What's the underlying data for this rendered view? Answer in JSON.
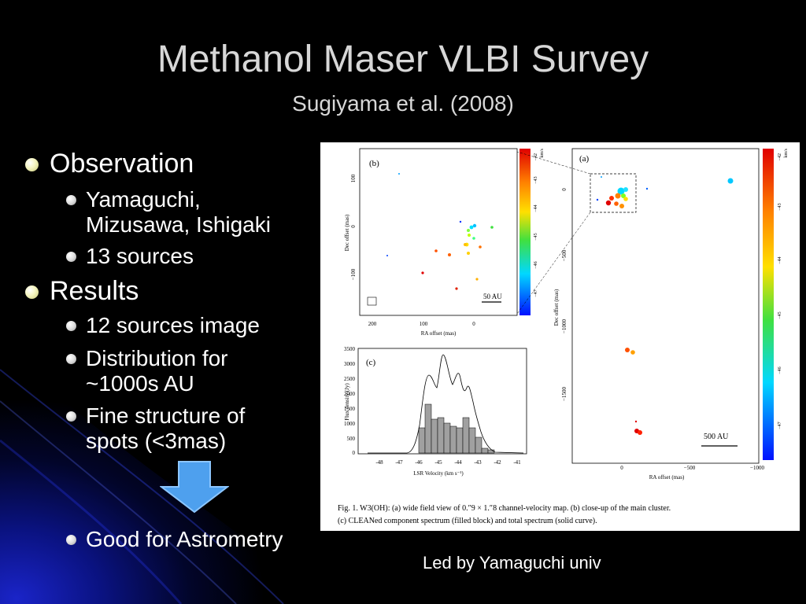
{
  "slide": {
    "title": "Methanol Maser VLBI Survey",
    "subtitle": "Sugiyama et al. (2008)",
    "credit": "Led by Yamaguchi univ",
    "bullets": [
      {
        "text": "Observation",
        "children": [
          "Yamaguchi,\nMizusawa, Ishigaki",
          "13 sources"
        ]
      },
      {
        "text": "Results",
        "children": [
          "12 sources image",
          "Distribution for\n~1000s AU",
          "Fine structure of\nspots (<3mas)"
        ]
      }
    ],
    "conclusion": "Good for Astrometry",
    "arrow_icon": "down-arrow-icon",
    "colors": {
      "title": "#d7d7d7",
      "arrow": "#4ea0ee",
      "background": "#000000"
    }
  },
  "figure": {
    "caption_line1": "Fig. 1.  W3(OH): (a) wide field view of 0.″9 × 1.″8 channel-velocity map. (b) close-up of the main cluster.",
    "caption_line2": "(c) CLEANed component spectrum (filled block) and total spectrum (solid curve).",
    "panel_a": {
      "label": "(a)",
      "xlabel": "RA offset (mas)",
      "ylabel": "Dec offset (mas)",
      "xticks": [
        "0",
        "−500",
        "−1000"
      ],
      "yticks": [
        "0",
        "−500",
        "−1000",
        "−1500"
      ],
      "scale_label": "500 AU",
      "colorbar_unit": "km/s",
      "colorbar_ticks": [
        "−42",
        "−43",
        "−44",
        "−45",
        "−46",
        "−47"
      ]
    },
    "panel_b": {
      "label": "(b)",
      "xlabel": "RA offset (mas)",
      "ylabel": "Dec offset (mas)",
      "xticks": [
        "200",
        "100",
        "0"
      ],
      "yticks": [
        "100",
        "0",
        "−100"
      ],
      "scale_label": "50 AU",
      "colorbar_unit": "km/s",
      "colorbar_ticks": [
        "−42",
        "−43",
        "−44",
        "−45",
        "−46",
        "−47"
      ]
    },
    "panel_c": {
      "label": "(c)",
      "xlabel": "LSR Velocity (km s⁻¹)",
      "ylabel": "Flux density (Jy)",
      "xticks": [
        "-48",
        "-47",
        "-46",
        "-45",
        "-44",
        "-43",
        "-42",
        "-41"
      ],
      "yticks": [
        "3500",
        "3000",
        "2500",
        "2000",
        "1500",
        "1000",
        "500",
        "0"
      ]
    }
  }
}
